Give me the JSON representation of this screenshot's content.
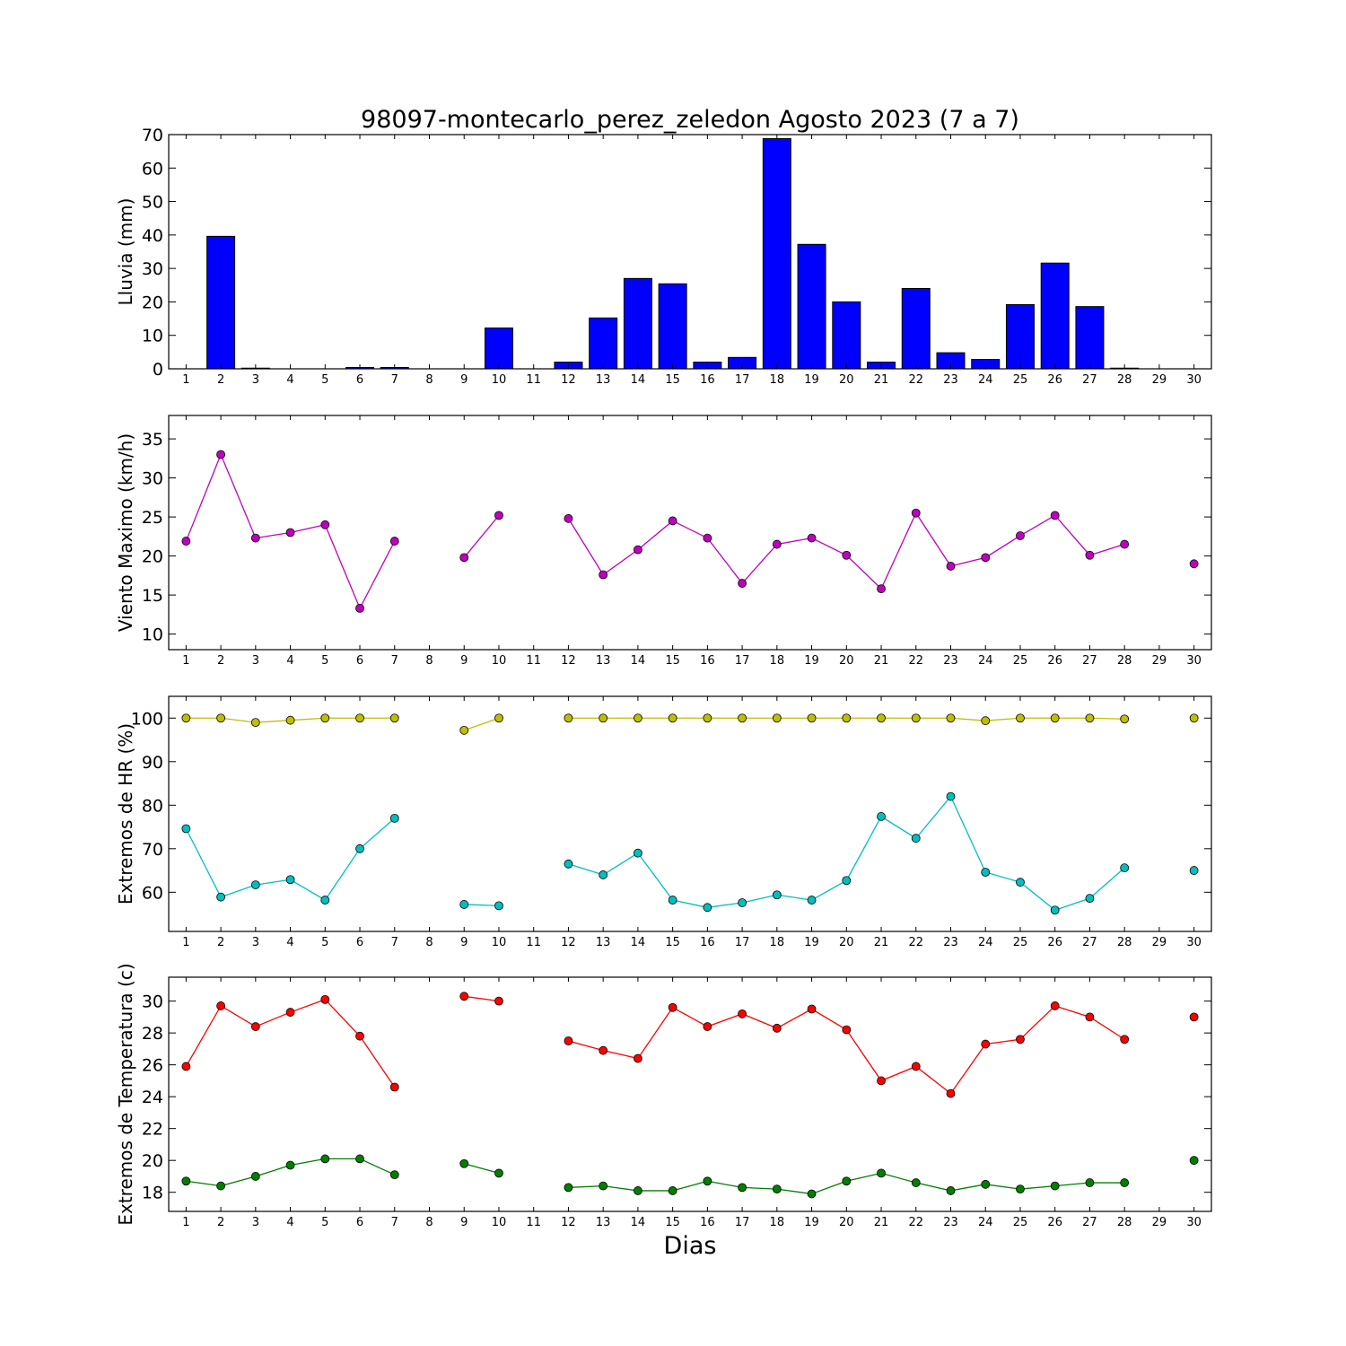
{
  "figure": {
    "title": "98097-montecarlo_perez_zeledon Agosto 2023  (7 a 7)",
    "xlabel": "Dias"
  },
  "chart_data": [
    {
      "id": "rain",
      "type": "bar",
      "ylabel": "Lluvia (mm)",
      "ylim": [
        0,
        70
      ],
      "yticks": [
        0,
        10,
        20,
        30,
        40,
        50,
        60,
        70
      ],
      "x": [
        1,
        2,
        3,
        4,
        5,
        6,
        7,
        8,
        9,
        10,
        11,
        12,
        13,
        14,
        15,
        16,
        17,
        18,
        19,
        20,
        21,
        22,
        23,
        24,
        25,
        26,
        27,
        28,
        29,
        30
      ],
      "xlim": [
        0.5,
        30.5
      ],
      "grid": false,
      "series": [
        {
          "color": "#0000ff",
          "values": [
            0,
            39.6,
            0.2,
            0,
            0,
            0.4,
            0.4,
            0,
            0,
            12.2,
            0,
            2,
            15.2,
            27,
            25.4,
            2,
            3.4,
            68.8,
            37.2,
            20,
            2,
            24,
            4.8,
            2.8,
            19.2,
            31.6,
            18.6,
            0.2,
            0,
            0
          ]
        }
      ]
    },
    {
      "id": "wind",
      "type": "line",
      "ylabel": "Viento Maximo (km/h)",
      "ylim": [
        8,
        38
      ],
      "yticks": [
        10,
        15,
        20,
        25,
        30,
        35
      ],
      "x": [
        1,
        2,
        3,
        4,
        5,
        6,
        7,
        8,
        9,
        10,
        11,
        12,
        13,
        14,
        15,
        16,
        17,
        18,
        19,
        20,
        21,
        22,
        23,
        24,
        25,
        26,
        27,
        28,
        29,
        30
      ],
      "xlim": [
        0.5,
        30.5
      ],
      "grid": false,
      "series": [
        {
          "color": "#bf00bf",
          "values": [
            21.9,
            33,
            22.3,
            23,
            24,
            13.3,
            21.9,
            null,
            19.8,
            25.2,
            null,
            24.8,
            17.6,
            20.8,
            24.5,
            22.3,
            16.5,
            21.5,
            22.3,
            20.1,
            15.8,
            25.5,
            18.7,
            19.8,
            22.6,
            25.2,
            20.1,
            21.5,
            null,
            19
          ]
        }
      ]
    },
    {
      "id": "humidity",
      "type": "line",
      "ylabel": "Extremos de HR (%)",
      "ylim": [
        51,
        105
      ],
      "yticks": [
        60,
        70,
        80,
        90,
        100
      ],
      "x": [
        1,
        2,
        3,
        4,
        5,
        6,
        7,
        8,
        9,
        10,
        11,
        12,
        13,
        14,
        15,
        16,
        17,
        18,
        19,
        20,
        21,
        22,
        23,
        24,
        25,
        26,
        27,
        28,
        29,
        30
      ],
      "xlim": [
        0.5,
        30.5
      ],
      "grid": false,
      "series": [
        {
          "color": "#bfbf00",
          "values": [
            100,
            100,
            99,
            99.5,
            100,
            100,
            100,
            null,
            97.2,
            100,
            null,
            100,
            100,
            100,
            100,
            100,
            100,
            100,
            100,
            100,
            100,
            100,
            100,
            99.4,
            100,
            100,
            100,
            99.8,
            null,
            100
          ]
        },
        {
          "color": "#00bfbf",
          "values": [
            74.6,
            58.9,
            61.7,
            62.9,
            58.2,
            70,
            77,
            null,
            57.2,
            56.9,
            null,
            66.5,
            64,
            69,
            58.2,
            56.5,
            57.6,
            59.4,
            58.2,
            62.7,
            77.4,
            72.4,
            82,
            64.6,
            62.3,
            55.9,
            58.6,
            65.6,
            null,
            65
          ]
        }
      ]
    },
    {
      "id": "temperature",
      "type": "line",
      "ylabel": "Extremos de Temperatura (c)",
      "ylim": [
        16.8,
        31.5
      ],
      "yticks": [
        18,
        20,
        22,
        24,
        26,
        28,
        30
      ],
      "x": [
        1,
        2,
        3,
        4,
        5,
        6,
        7,
        8,
        9,
        10,
        11,
        12,
        13,
        14,
        15,
        16,
        17,
        18,
        19,
        20,
        21,
        22,
        23,
        24,
        25,
        26,
        27,
        28,
        29,
        30
      ],
      "xlim": [
        0.5,
        30.5
      ],
      "grid": false,
      "series": [
        {
          "color": "#ff0000",
          "values": [
            25.9,
            29.7,
            28.4,
            29.3,
            30.1,
            27.8,
            24.6,
            null,
            30.3,
            30,
            null,
            27.5,
            26.9,
            26.4,
            29.6,
            28.4,
            29.2,
            28.3,
            29.5,
            28.2,
            25,
            25.9,
            24.2,
            27.3,
            27.6,
            29.7,
            29,
            27.6,
            null,
            29
          ]
        },
        {
          "color": "#007f00",
          "values": [
            18.7,
            18.4,
            19,
            19.7,
            20.1,
            20.1,
            19.1,
            null,
            19.8,
            19.2,
            null,
            18.3,
            18.4,
            18.1,
            18.1,
            18.7,
            18.3,
            18.2,
            17.9,
            18.7,
            19.2,
            18.6,
            18.1,
            18.5,
            18.2,
            18.4,
            18.6,
            18.6,
            null,
            20
          ]
        }
      ]
    }
  ]
}
